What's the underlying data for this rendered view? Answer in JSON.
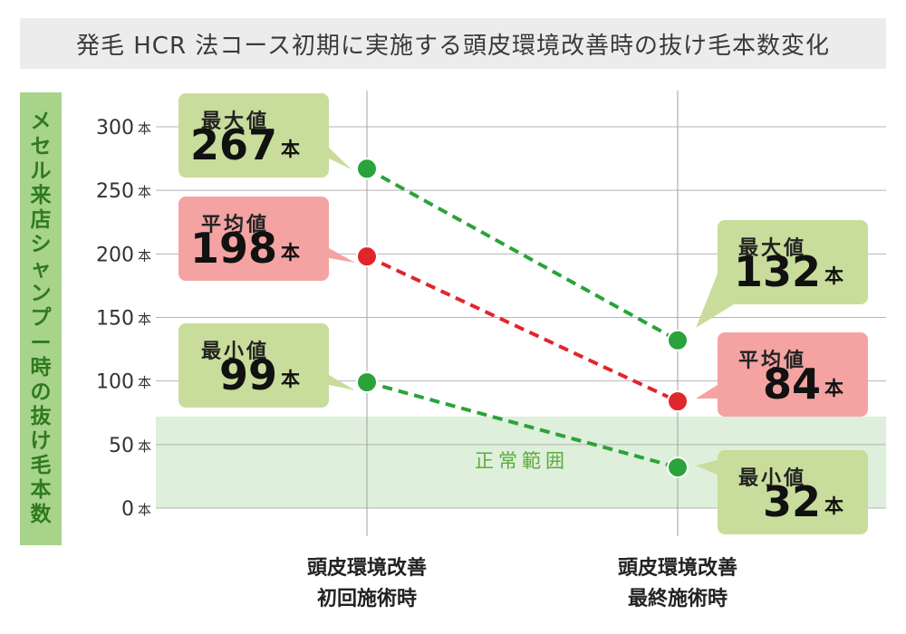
{
  "title": "発毛 HCR 法コース初期に実施する頭皮環境改善時の抜け毛本数変化",
  "colors": {
    "green": "#2aa33a",
    "red": "#e0262b",
    "green_box": "#c8dd9b",
    "red_box": "#f4a3a2",
    "normal_band": "#deefdb",
    "ylabel_bg": "#a7d38b",
    "ylabel_text": "#2f7a1f"
  },
  "chart_data": {
    "type": "line",
    "title": "発毛 HCR 法コース初期に実施する頭皮環境改善時の抜け毛本数変化",
    "ylabel": "メセル来店シャンプー時の抜け毛本数",
    "y_unit": "本",
    "ylim": [
      0,
      300
    ],
    "yticks": [
      0,
      50,
      100,
      150,
      200,
      250,
      300
    ],
    "categories": [
      "頭皮環境改善\n初回施術時",
      "頭皮環境改善\n最終施術時"
    ],
    "series": [
      {
        "name": "最大値",
        "values": [
          267,
          132
        ],
        "color": "#2aa33a"
      },
      {
        "name": "平均値",
        "values": [
          198,
          84
        ],
        "color": "#e0262b"
      },
      {
        "name": "最小値",
        "values": [
          99,
          32
        ],
        "color": "#2aa33a"
      }
    ],
    "normal_range": {
      "label": "正常範囲",
      "from": 0,
      "to": 72
    },
    "grid": true,
    "legend": "callouts"
  }
}
